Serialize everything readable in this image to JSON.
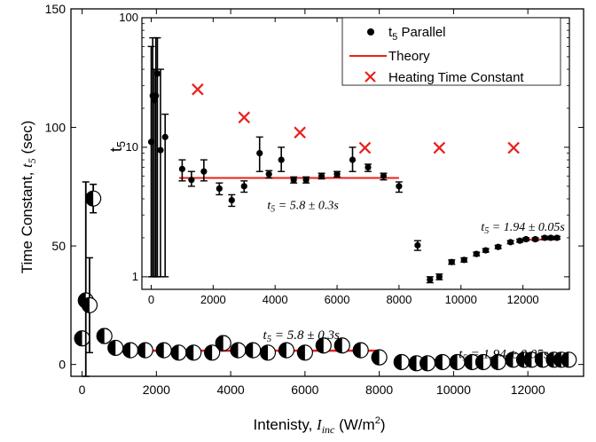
{
  "chart_data": [
    {
      "type": "scatter",
      "title": "",
      "xlabel": "Intenisty, I_inc (W/m2)",
      "xlabel_main": "Intenisty, ",
      "xlabel_var": "I",
      "xlabel_sub": "inc",
      "xlabel_unit": " (W/m",
      "xlabel_unit_sup": "2",
      "xlabel_close": ")",
      "ylabel": "Time Constant, t5 (sec)",
      "ylabel_main": "Time Constant, ",
      "ylabel_var": "t",
      "ylabel_sub": "5",
      "ylabel_unit": " (sec)",
      "xlim": [
        -300,
        13500
      ],
      "ylim": [
        -5,
        150
      ],
      "xticks": [
        0,
        2000,
        4000,
        6000,
        8000,
        10000,
        12000
      ],
      "yticks": [
        0,
        50,
        100,
        150
      ],
      "series": [
        {
          "marker": "half-filled-circle",
          "x": [
            0,
            100,
            200,
            300,
            600,
            900,
            1300,
            1700,
            2200,
            2600,
            3000,
            3500,
            3800,
            4200,
            4600,
            5000,
            5500,
            6000,
            6500,
            7000,
            7500,
            8000,
            8600,
            9000,
            9300,
            9700,
            10100,
            10500,
            10800,
            11200,
            11600,
            11900,
            12100,
            12400,
            12700,
            12900,
            13100
          ],
          "y": [
            11,
            27,
            25,
            70,
            12,
            7,
            6,
            6,
            6,
            5,
            5,
            5,
            9,
            6,
            6,
            5,
            6,
            5,
            8,
            8,
            6,
            3,
            1,
            0.5,
            0.5,
            1,
            1,
            1,
            1,
            1,
            2,
            2,
            2,
            2,
            2,
            2,
            2
          ],
          "yerr": [
            2,
            50,
            20,
            6,
            3,
            1,
            1,
            1,
            1,
            1,
            1,
            1,
            3,
            2,
            1,
            1,
            1,
            1,
            2,
            2,
            1,
            1,
            0.2,
            0.2,
            0.2,
            0.2,
            0.2,
            0.2,
            0.2,
            0.2,
            0.2,
            0.2,
            0.2,
            0.2,
            0.2,
            0.2,
            0.2
          ]
        }
      ],
      "theory_lines": [
        {
          "x": [
            900,
            8000
          ],
          "y": [
            5.8,
            5.8
          ]
        },
        {
          "x": [
            12000,
            13100
          ],
          "y": [
            1.94,
            1.94
          ]
        }
      ],
      "annotations": [
        {
          "text": "t5 = 5.8 ± 0.3s",
          "x": 5900,
          "y": 13
        },
        {
          "text": "t5 = 1.94 ± 0.05s",
          "x": 11350,
          "y": 5
        }
      ]
    },
    {
      "type": "scatter",
      "title": "",
      "xlabel": "",
      "ylabel": "t5",
      "ylabel_main": "t",
      "ylabel_sub": "5",
      "xlim": [
        -300,
        13500
      ],
      "ylim": [
        0.8,
        100
      ],
      "yscale": "log",
      "xticks": [
        0,
        2000,
        4000,
        6000,
        8000,
        10000,
        12000
      ],
      "yticks": [
        1,
        10,
        100
      ],
      "legend_position": "top-right",
      "legend": [
        {
          "label": "t5 Parallel",
          "label_main": "t",
          "label_sub": "5",
          "label_rest": " Parallel",
          "kind": "dot"
        },
        {
          "label": "Theory",
          "kind": "line"
        },
        {
          "label": "Heating Time Constant",
          "kind": "cross"
        }
      ],
      "series": [
        {
          "name": "t5 Parallel",
          "x": [
            0,
            50,
            100,
            150,
            200,
            300,
            450,
            1000,
            1300,
            1700,
            2200,
            2600,
            3000,
            3500,
            3800,
            4200,
            4600,
            5000,
            5500,
            6000,
            6500,
            7000,
            7500,
            8000,
            8600,
            9000,
            9300,
            9700,
            10100,
            10500,
            10800,
            11200,
            11600,
            11900,
            12100,
            12400,
            12700,
            12900,
            13100
          ],
          "y": [
            11,
            25,
            23,
            25,
            37,
            9.5,
            12,
            6.8,
            5.6,
            6.5,
            4.8,
            3.9,
            5,
            9,
            6.2,
            8,
            5.6,
            5.6,
            6,
            6.2,
            8,
            7,
            6,
            5,
            1.75,
            0.95,
            1,
            1.3,
            1.35,
            1.5,
            1.6,
            1.7,
            1.85,
            1.9,
            1.95,
            1.95,
            2,
            2,
            2
          ],
          "ylo": [
            1,
            1,
            1,
            1,
            1,
            1,
            1,
            5.5,
            5.0,
            5.5,
            4.3,
            3.5,
            4.5,
            6.5,
            5.8,
            6.5,
            5.3,
            5.3,
            5.7,
            5.9,
            6.5,
            6.5,
            5.6,
            4.5,
            1.6,
            0.9,
            0.95,
            1.25,
            1.3,
            1.45,
            1.55,
            1.65,
            1.8,
            1.85,
            1.9,
            1.9,
            1.95,
            1.95,
            1.95
          ],
          "yhi": [
            60,
            70,
            40,
            70,
            70,
            40,
            18,
            8,
            6.5,
            8,
            5.3,
            4.3,
            5.5,
            12,
            6.6,
            10,
            5.9,
            5.9,
            6.3,
            6.5,
            10,
            7.4,
            6.3,
            5.4,
            1.9,
            1.0,
            1.05,
            1.35,
            1.4,
            1.55,
            1.65,
            1.75,
            1.9,
            1.95,
            2.0,
            2.0,
            2.05,
            2.05,
            2.05
          ]
        },
        {
          "name": "Heating Time Constant",
          "x": [
            1500,
            3000,
            4800,
            6900,
            9300,
            11700
          ],
          "y": [
            28,
            17,
            13,
            9.9,
            9.9,
            9.9
          ]
        }
      ],
      "theory_lines": [
        {
          "x": [
            900,
            8000
          ],
          "y": [
            5.8,
            5.8
          ]
        },
        {
          "x": [
            12000,
            13100
          ],
          "y": [
            1.94,
            1.94
          ]
        }
      ],
      "annotations": [
        {
          "text": "t5 = 5.8 ± 0.3s",
          "x": 4900,
          "y": 3.6
        },
        {
          "text": "t5 = 1.94 ± 0.05s",
          "x": 12000,
          "y": 2.45
        }
      ]
    }
  ]
}
